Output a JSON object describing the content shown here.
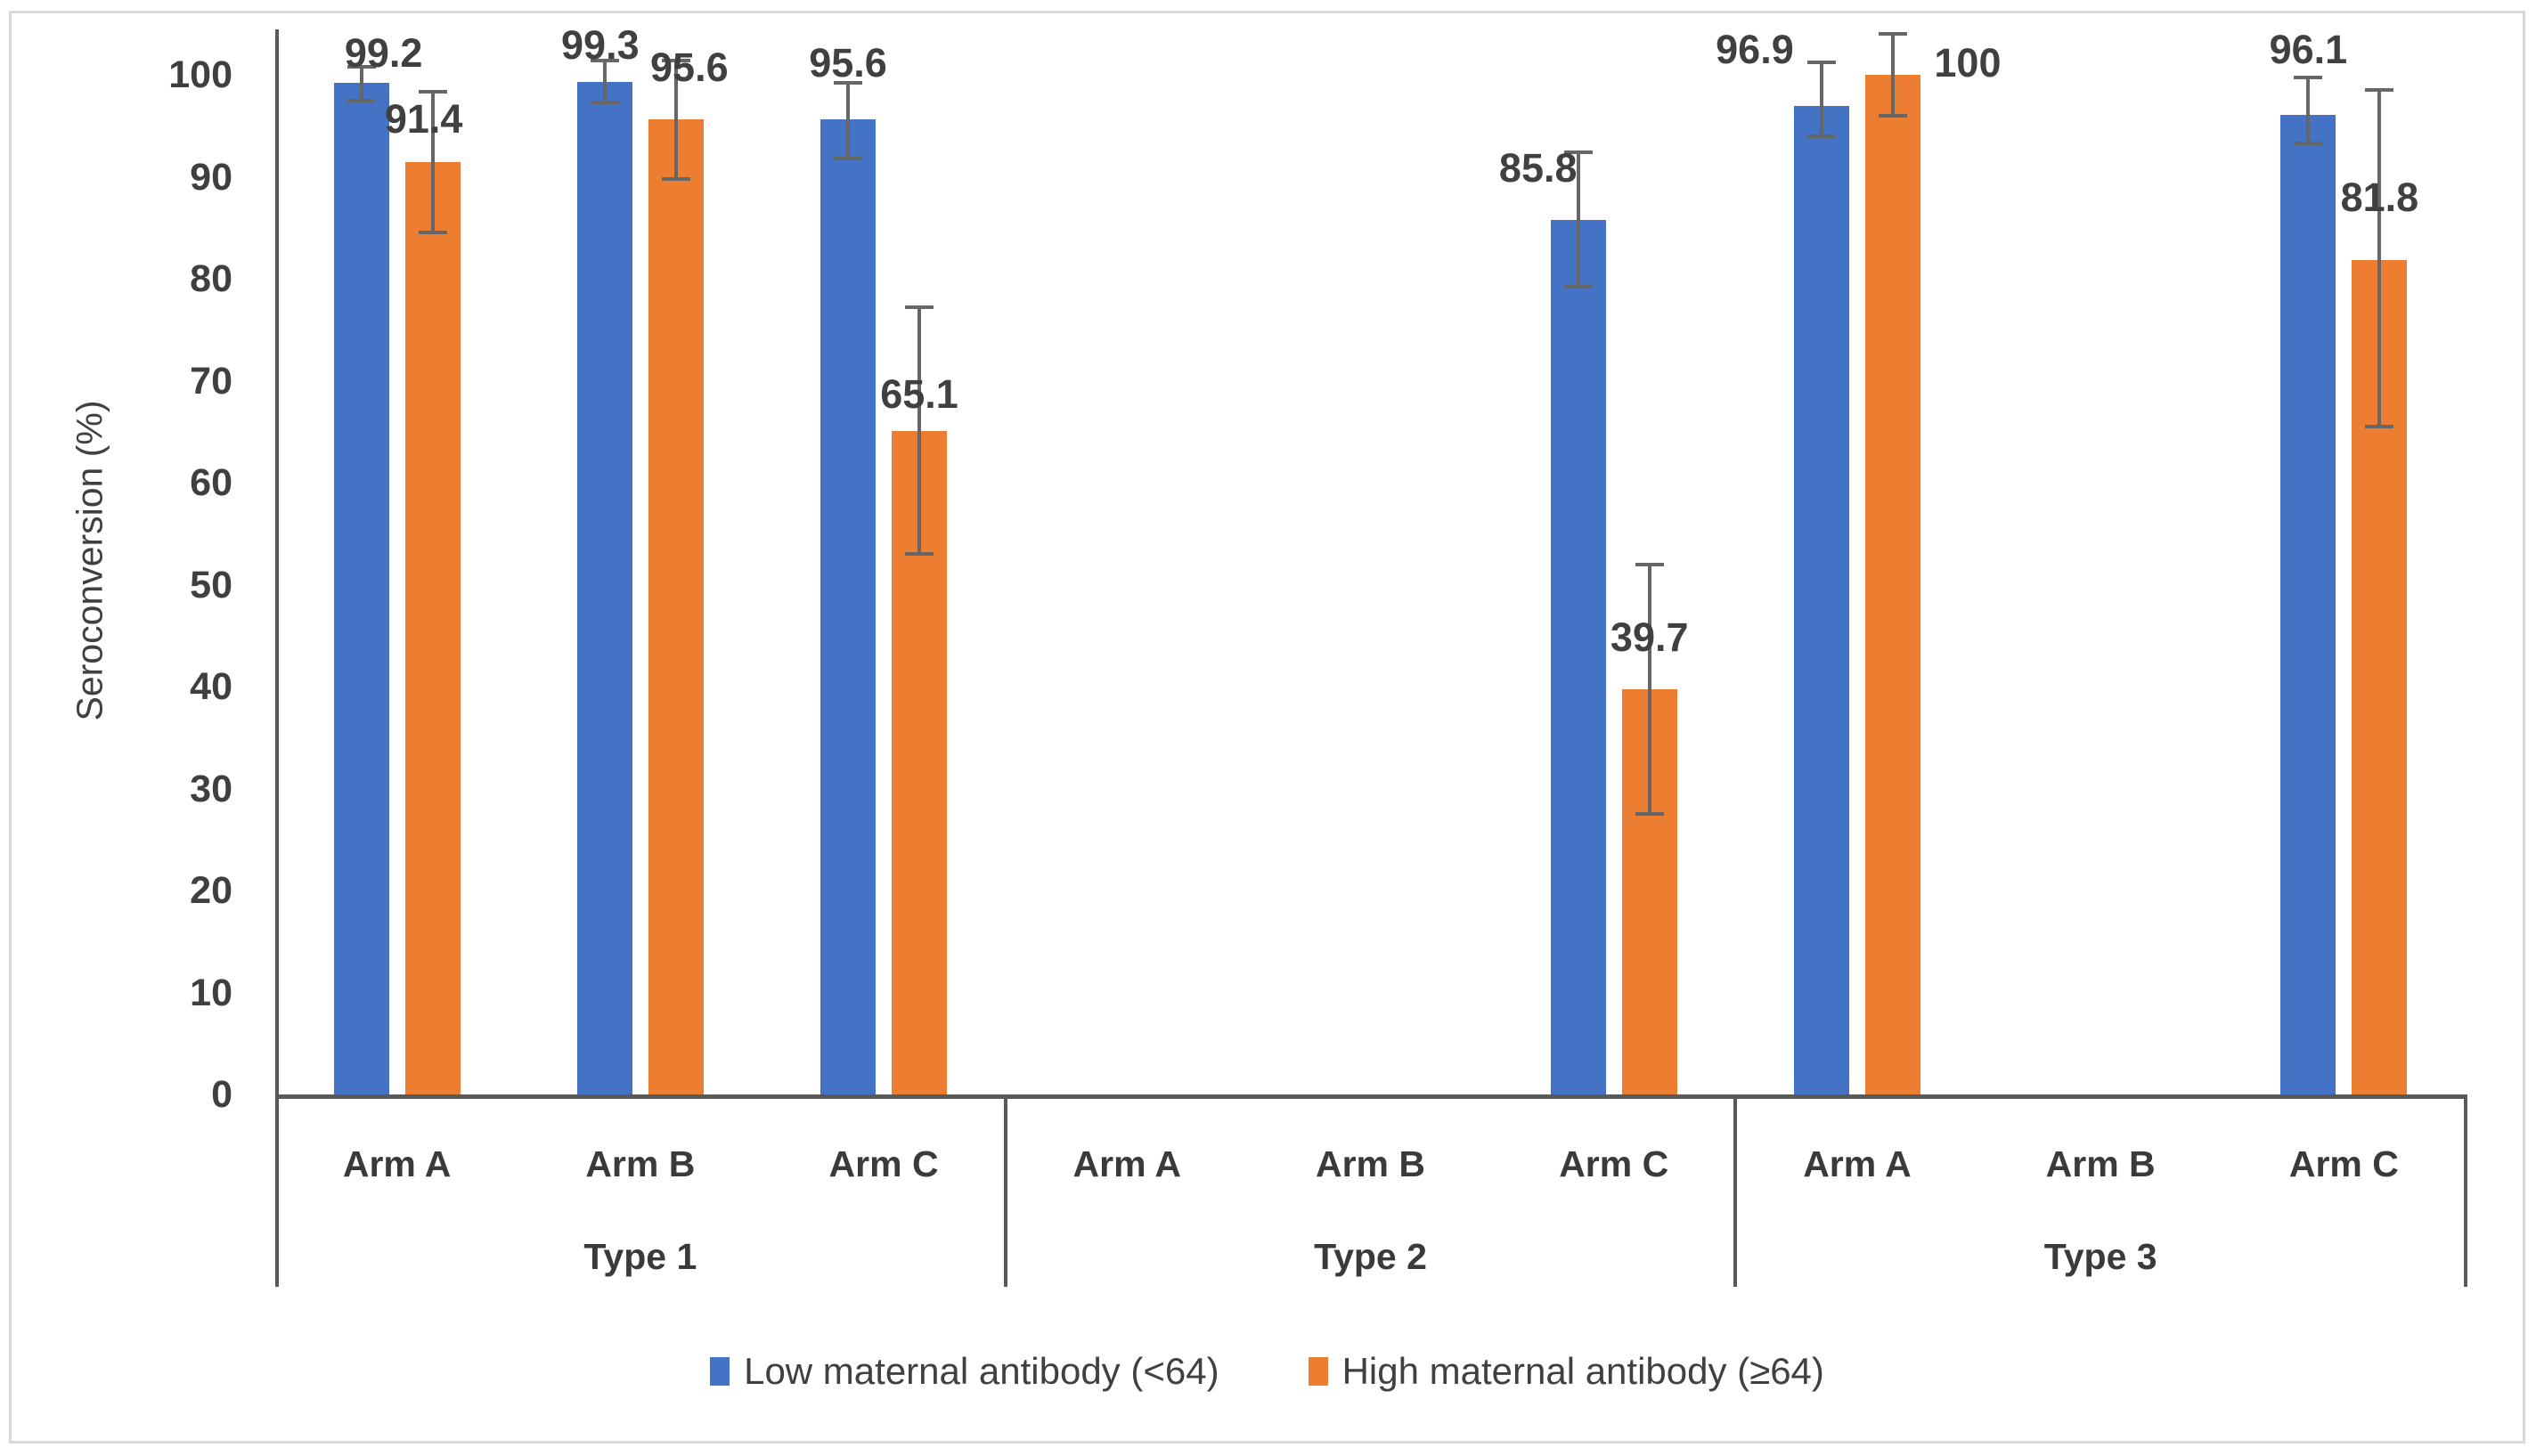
{
  "figure": {
    "background": "#ffffff",
    "border_color": "#d9d9d9",
    "axis_color": "#595959",
    "error_bar_color": "#666666",
    "text_color": "#404040"
  },
  "chart_data": {
    "type": "bar",
    "title": "",
    "xlabel": "",
    "ylabel": "Seroconversion (%)",
    "ylim": [
      0,
      104
    ],
    "yticks": [
      0,
      10,
      20,
      30,
      40,
      50,
      60,
      70,
      80,
      90,
      100
    ],
    "grid": false,
    "legend_position": "bottom",
    "groups": [
      "Type 1",
      "Type 2",
      "Type 3"
    ],
    "categories": [
      "Arm A",
      "Arm B",
      "Arm C"
    ],
    "series": [
      {
        "name": "Low maternal antibody (<64)",
        "color": "#4472C4",
        "values": [
          99.2,
          99.3,
          95.6,
          null,
          null,
          85.8,
          96.9,
          null,
          96.1
        ],
        "errors": [
          [
            97.5,
            100.8
          ],
          [
            97.3,
            101.4
          ],
          [
            91.8,
            99.2
          ],
          null,
          null,
          [
            79.2,
            92.4
          ],
          [
            94.0,
            101.2
          ],
          null,
          [
            93.3,
            99.7
          ]
        ],
        "label_offsets": [
          [
            25,
            0
          ],
          [
            -5,
            -8
          ],
          [
            0,
            -30
          ],
          null,
          null,
          [
            -45,
            -25
          ],
          [
            -75,
            -30
          ],
          null,
          [
            0,
            -40
          ]
        ]
      },
      {
        "name": "High maternal antibody (≥64)",
        "color": "#ED7D31",
        "values": [
          91.4,
          95.6,
          65.1,
          null,
          null,
          39.7,
          100,
          null,
          81.8
        ],
        "errors": [
          [
            84.5,
            98.3
          ],
          [
            89.8,
            101.4
          ],
          [
            53.0,
            77.2
          ],
          null,
          null,
          [
            27.5,
            52.0
          ],
          [
            96.0,
            104.0
          ],
          null,
          [
            65.5,
            98.5
          ]
        ],
        "label_offsets": [
          [
            -10,
            -15
          ],
          [
            15,
            -25
          ],
          [
            0,
            -8
          ],
          null,
          null,
          [
            0,
            -25
          ],
          [
            84,
            20
          ],
          null,
          [
            0,
            -37
          ]
        ]
      }
    ],
    "data_labels": [
      [
        "99.2",
        "99.3",
        "95.6",
        null,
        null,
        "85.8",
        "96.9",
        null,
        "96.1"
      ],
      [
        "91.4",
        "95.6",
        "65.1",
        null,
        null,
        "39.7",
        "100",
        null,
        "81.8"
      ]
    ]
  }
}
